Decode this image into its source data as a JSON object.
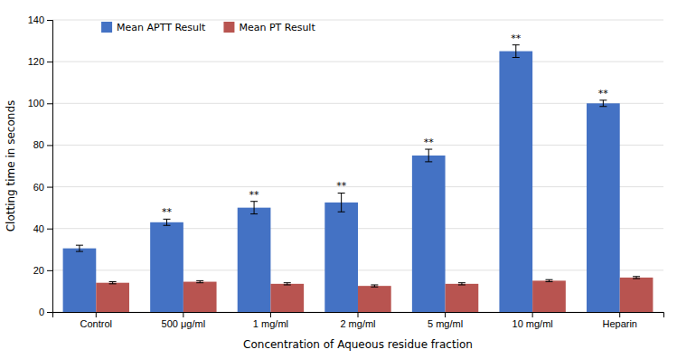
{
  "chart_data": {
    "type": "bar",
    "categories": [
      "Control",
      "500 μg/ml",
      "1 mg/ml",
      "2 mg/ml",
      "5 mg/ml",
      "10 mg/ml",
      "Heparin"
    ],
    "series": [
      {
        "name": "Mean APTT Result",
        "color": "#4472C4",
        "values": [
          30.5,
          43.0,
          50.0,
          52.5,
          75.0,
          125.0,
          100.0
        ],
        "errors": [
          1.5,
          1.5,
          3.0,
          4.5,
          3.0,
          3.0,
          1.5
        ]
      },
      {
        "name": "Mean PT Result",
        "color": "#B85450",
        "values": [
          14.0,
          14.5,
          13.5,
          12.5,
          13.5,
          15.0,
          16.5
        ],
        "errors": [
          0.5,
          0.5,
          0.5,
          0.5,
          0.5,
          0.5,
          0.5
        ]
      }
    ],
    "annotations": [
      {
        "text": "**",
        "category": "500 μg/ml",
        "series": "Mean APTT Result"
      },
      {
        "text": "**",
        "category": "1 mg/ml",
        "series": "Mean APTT Result"
      },
      {
        "text": "**",
        "category": "2 mg/ml",
        "series": "Mean APTT Result"
      },
      {
        "text": "**",
        "category": "5 mg/ml",
        "series": "Mean APTT Result"
      },
      {
        "text": "**",
        "category": "10 mg/ml",
        "series": "Mean APTT Result"
      },
      {
        "text": "**",
        "category": "Heparin",
        "series": "Mean APTT Result"
      }
    ],
    "xlabel": "Concentration of Aqueous residue fraction",
    "ylabel": "Clotting time in seconds",
    "ylim": [
      0,
      140
    ],
    "yticks": [
      0,
      20,
      40,
      60,
      80,
      100,
      120,
      140
    ],
    "grid": true,
    "legend": "upper left"
  }
}
